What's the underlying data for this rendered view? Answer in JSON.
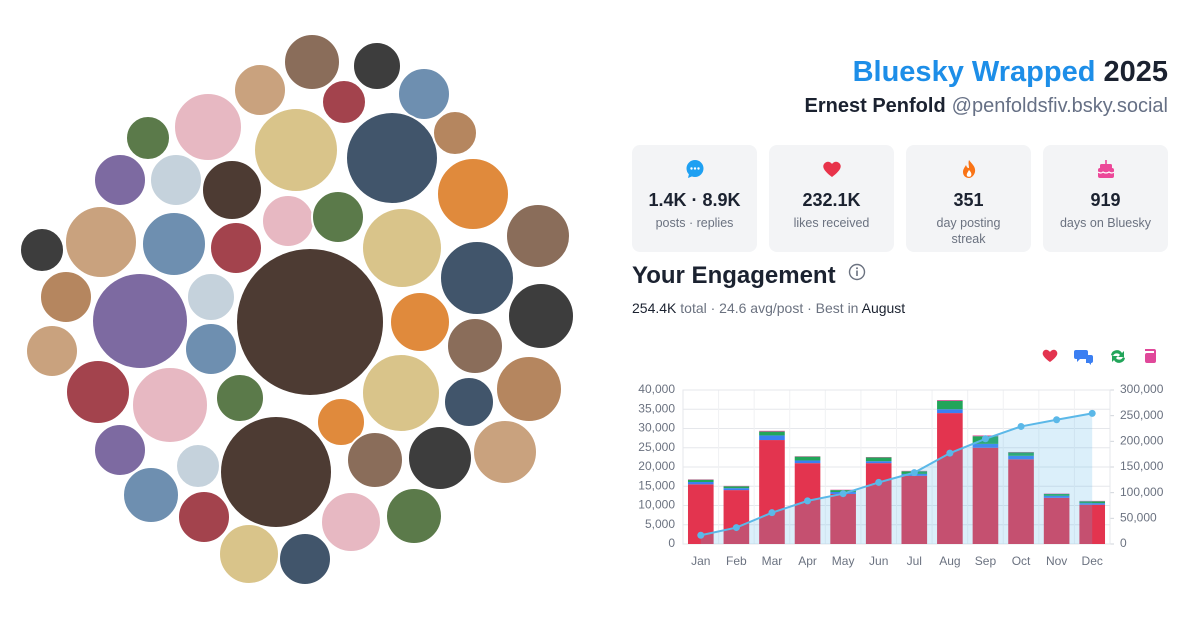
{
  "header": {
    "title": "Bluesky Wrapped",
    "year": "2025",
    "name": "Ernest Penfold",
    "handle": "@penfoldsfiv.bsky.social"
  },
  "stats": [
    {
      "value": "1.4K · 8.9K",
      "label": "posts · replies"
    },
    {
      "value": "232.1K",
      "label": "likes received"
    },
    {
      "value": "351",
      "label": "day posting streak"
    },
    {
      "value": "919",
      "label": "days on Bluesky"
    }
  ],
  "engagement": {
    "title": "Your Engagement",
    "total": "254.4K",
    "detail": "total · 24.6 avg/post · Best in",
    "best": "August"
  },
  "chart_data": {
    "type": "bar",
    "stacked": true,
    "categories": [
      "Jan",
      "Feb",
      "Mar",
      "Apr",
      "May",
      "Jun",
      "Jul",
      "Aug",
      "Sep",
      "Oct",
      "Nov",
      "Dec"
    ],
    "series": [
      {
        "color": "#e3344f",
        "values": [
          15500,
          14000,
          27000,
          21000,
          13000,
          21000,
          17700,
          34000,
          25000,
          22000,
          12000,
          10200
        ]
      },
      {
        "color": "#3b7ff2",
        "values": [
          600,
          500,
          1200,
          700,
          500,
          500,
          500,
          1000,
          1000,
          900,
          500,
          400
        ]
      },
      {
        "color": "#22a55a",
        "values": [
          600,
          500,
          1000,
          1000,
          500,
          1000,
          700,
          2200,
          2000,
          900,
          500,
          500
        ]
      },
      {
        "color": "#e0489a",
        "values": [
          100,
          100,
          200,
          100,
          100,
          100,
          100,
          200,
          200,
          100,
          100,
          100
        ]
      },
      {
        "color": "#5bb8e8",
        "type": "line",
        "axis": "y2",
        "values": [
          17000,
          32000,
          61000,
          84000,
          98000,
          120000,
          139000,
          177000,
          205000,
          229000,
          242000,
          254400
        ]
      }
    ],
    "ylim": [
      0,
      40000
    ],
    "yticks": [
      0,
      {
        "value": 5000,
        "label": "5,000"
      },
      {
        "value": 10000,
        "label": "10,000"
      },
      {
        "value": 15000,
        "label": "15,000"
      },
      {
        "value": 20000,
        "label": "20,000"
      },
      {
        "value": 25000,
        "label": "25,000"
      },
      {
        "value": 30000,
        "label": "30,000"
      },
      {
        "value": 35000,
        "label": "35,000"
      },
      {
        "value": 40000,
        "label": "40,000"
      }
    ],
    "y2lim": [
      0,
      300000
    ],
    "y2ticks": [
      0,
      {
        "value": 50000,
        "label": "50,000"
      },
      {
        "value": 100000,
        "label": "100,000"
      },
      {
        "value": 150000,
        "label": "150,000"
      },
      {
        "value": 200000,
        "label": "200,000"
      },
      {
        "value": 250000,
        "label": "250,000"
      },
      {
        "value": 300000,
        "label": "300,000"
      }
    ],
    "grid": true
  }
}
